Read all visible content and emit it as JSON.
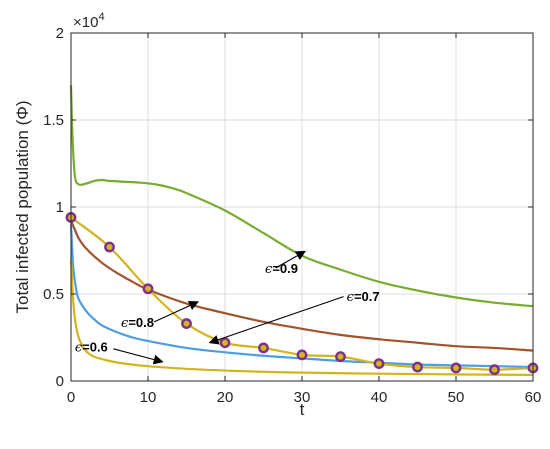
{
  "chart_data": {
    "type": "line",
    "xlabel": "t",
    "ylabel": "Total infected population (Φ)",
    "xlim": [
      0,
      60
    ],
    "ylim": [
      0,
      20000
    ],
    "x_ticks": [
      0,
      10,
      20,
      30,
      40,
      50,
      60
    ],
    "y_ticks": [
      0,
      5000,
      10000,
      15000,
      20000
    ],
    "y_tick_labels": [
      "0",
      "0.5",
      "1",
      "1.5",
      "2"
    ],
    "y_multiplier": {
      "base": "×10",
      "exp": "4"
    },
    "grid": true,
    "series": [
      {
        "color": "#77ac30",
        "x": [
          0,
          0.2,
          0.5,
          1,
          2,
          3,
          4,
          5,
          7,
          9,
          11,
          13,
          15,
          20,
          25,
          30,
          35,
          40,
          45,
          50,
          55,
          60
        ],
        "y": [
          17000,
          14000,
          11800,
          11300,
          11350,
          11500,
          11550,
          11500,
          11450,
          11400,
          11300,
          11100,
          10800,
          9800,
          8500,
          7200,
          6400,
          5700,
          5200,
          4800,
          4500,
          4300
        ]
      },
      {
        "color": "#a2522d",
        "x": [
          0,
          0.5,
          1,
          2,
          4,
          6,
          8,
          10,
          15,
          20,
          25,
          30,
          35,
          40,
          45,
          50,
          55,
          60
        ],
        "y": [
          9200,
          8700,
          8200,
          7600,
          6800,
          6200,
          5700,
          5250,
          4450,
          3900,
          3400,
          3000,
          2650,
          2400,
          2200,
          2000,
          1900,
          1750
        ]
      },
      {
        "color": "#4d9de0",
        "x": [
          0,
          0.3,
          0.7,
          1,
          2,
          3,
          4,
          6,
          8,
          10,
          15,
          20,
          25,
          30,
          35,
          40,
          45,
          50,
          55,
          60
        ],
        "y": [
          9000,
          6500,
          5200,
          4700,
          4000,
          3550,
          3200,
          2800,
          2500,
          2300,
          1900,
          1650,
          1450,
          1300,
          1150,
          1050,
          950,
          900,
          850,
          800
        ]
      },
      {
        "color": "#d2b41d",
        "x": [
          0,
          0.3,
          0.6,
          1,
          1.5,
          2,
          3,
          5,
          7,
          10,
          15,
          20,
          25,
          30,
          40,
          50,
          60
        ],
        "y": [
          7000,
          4500,
          3300,
          2500,
          2000,
          1700,
          1400,
          1150,
          1000,
          850,
          700,
          600,
          530,
          480,
          420,
          380,
          350
        ]
      },
      {
        "color": "#d2b41d",
        "marker": "circle",
        "marker_edge": "#7e2f8e",
        "x": [
          0,
          5,
          10,
          15,
          20,
          25,
          30,
          35,
          40,
          45,
          50,
          55,
          60
        ],
        "y": [
          9400,
          7700,
          5300,
          3300,
          2200,
          1900,
          1500,
          1400,
          1000,
          800,
          750,
          650,
          750
        ]
      }
    ],
    "annotations": [
      {
        "label": "=0.9",
        "symbol": "ϵ",
        "text_x": 25.2,
        "text_y": 6200,
        "arrow_from": [
          26.6,
          6500
        ],
        "arrow_to": [
          30.4,
          7450
        ]
      },
      {
        "label": "=0.7",
        "symbol": "ϵ",
        "text_x": 35.8,
        "text_y": 4600,
        "arrow_from": [
          35.4,
          4850
        ],
        "arrow_to": [
          18.0,
          2200
        ]
      },
      {
        "label": "=0.8",
        "symbol": "ϵ",
        "text_x": 6.5,
        "text_y": 3100,
        "arrow_from": [
          10.8,
          3400
        ],
        "arrow_to": [
          16.5,
          4550
        ]
      },
      {
        "label": "=0.6",
        "symbol": "ϵ",
        "text_x": 0.5,
        "text_y": 1700,
        "arrow_from": [
          5.5,
          1850
        ],
        "arrow_to": [
          11.9,
          1100
        ]
      }
    ]
  }
}
